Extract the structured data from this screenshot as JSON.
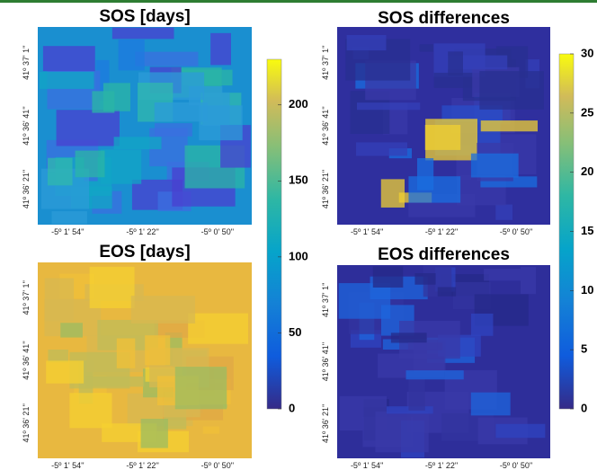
{
  "panels": [
    {
      "title": "SOS [days]",
      "x_labels": [
        "-5º 1' 54''",
        "-5º 1' 22''",
        "-5º 0' 50''"
      ],
      "y_labels": [
        "41º 37' 1''",
        "41º 36' 41''",
        "41º 36' 21''"
      ]
    },
    {
      "title": "SOS differences",
      "x_labels": [
        "-5º 1' 54''",
        "-5º 1' 22''",
        "-5º 0' 50''"
      ],
      "y_labels": [
        "41º 37' 1''",
        "41º 36' 41''",
        "41º 36' 21''"
      ]
    },
    {
      "title": "EOS [days]",
      "x_labels": [
        "-5º 1' 54''",
        "-5º 1' 22''",
        "-5º 0' 50''"
      ],
      "y_labels": [
        "41º 37' 1''",
        "41º 36' 41''",
        "41º 36' 21''"
      ]
    },
    {
      "title": "EOS differences",
      "x_labels": [
        "-5º 1' 54''",
        "-5º 1' 22''",
        "-5º 0' 50''"
      ],
      "y_labels": [
        "41º 37' 1''",
        "41º 36' 41''",
        "41º 36' 21''"
      ]
    }
  ],
  "colorbars": [
    {
      "ylim": [
        0,
        230
      ],
      "yticks": [
        0,
        50,
        100,
        150,
        200
      ]
    },
    {
      "ylim": [
        0,
        30
      ],
      "yticks": [
        0,
        5,
        10,
        15,
        20,
        25,
        30
      ]
    }
  ]
}
